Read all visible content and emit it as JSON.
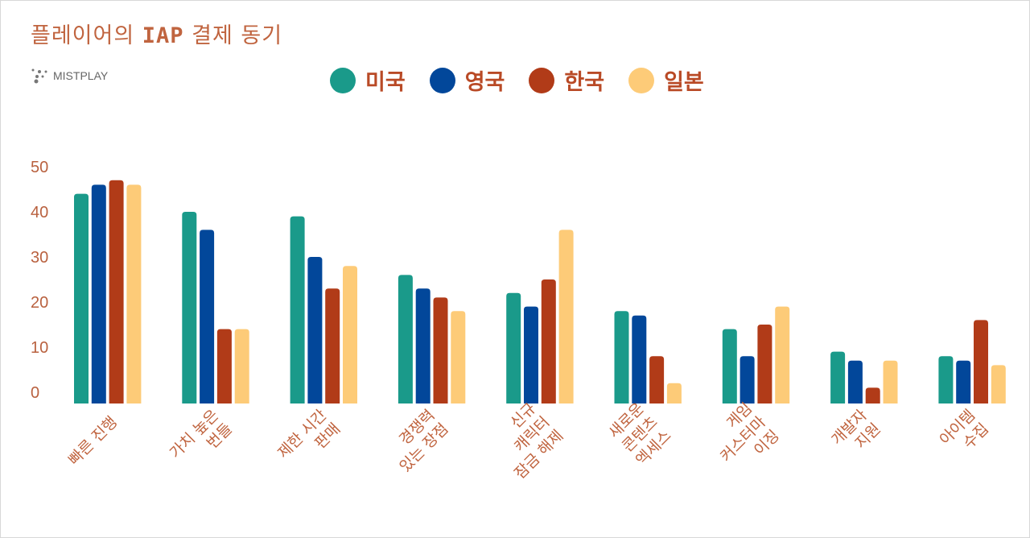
{
  "title_prefix": "플레이어의 ",
  "title_bold": "IAP",
  "title_suffix": " 결제 동기",
  "logo_text": "MISTPLAY",
  "chart_data": {
    "type": "bar",
    "title": "플레이어의 IAP 결제 동기",
    "xlabel": "",
    "ylabel": "",
    "ylim": [
      0,
      50
    ],
    "yticks": [
      0,
      10,
      20,
      30,
      40,
      50
    ],
    "legend_position": "top-center",
    "categories": [
      [
        "빠른 진행"
      ],
      [
        "가치 높은",
        "번들"
      ],
      [
        "제한 시간",
        "판매"
      ],
      [
        "경쟁력",
        "있는 장점"
      ],
      [
        "신규",
        "캐릭터",
        "잠금 해제"
      ],
      [
        "새로운",
        "콘텐츠",
        "엑세스"
      ],
      [
        "게임",
        "커스터마",
        "이징"
      ],
      [
        "개발자",
        "지원"
      ],
      [
        "아이템",
        "수집"
      ]
    ],
    "series": [
      {
        "name": "미국",
        "color": "#1a9a8a",
        "values": [
          44,
          40,
          39,
          26,
          22,
          18,
          14,
          9,
          8
        ]
      },
      {
        "name": "영국",
        "color": "#02479a",
        "values": [
          46,
          36,
          30,
          23,
          19,
          17,
          8,
          7,
          7
        ]
      },
      {
        "name": "한국",
        "color": "#b13b18",
        "values": [
          47,
          14,
          23,
          21,
          25,
          8,
          15,
          1,
          16
        ]
      },
      {
        "name": "일본",
        "color": "#fdcb78",
        "values": [
          46,
          14,
          28,
          18,
          36,
          2,
          19,
          7,
          6
        ]
      }
    ]
  }
}
